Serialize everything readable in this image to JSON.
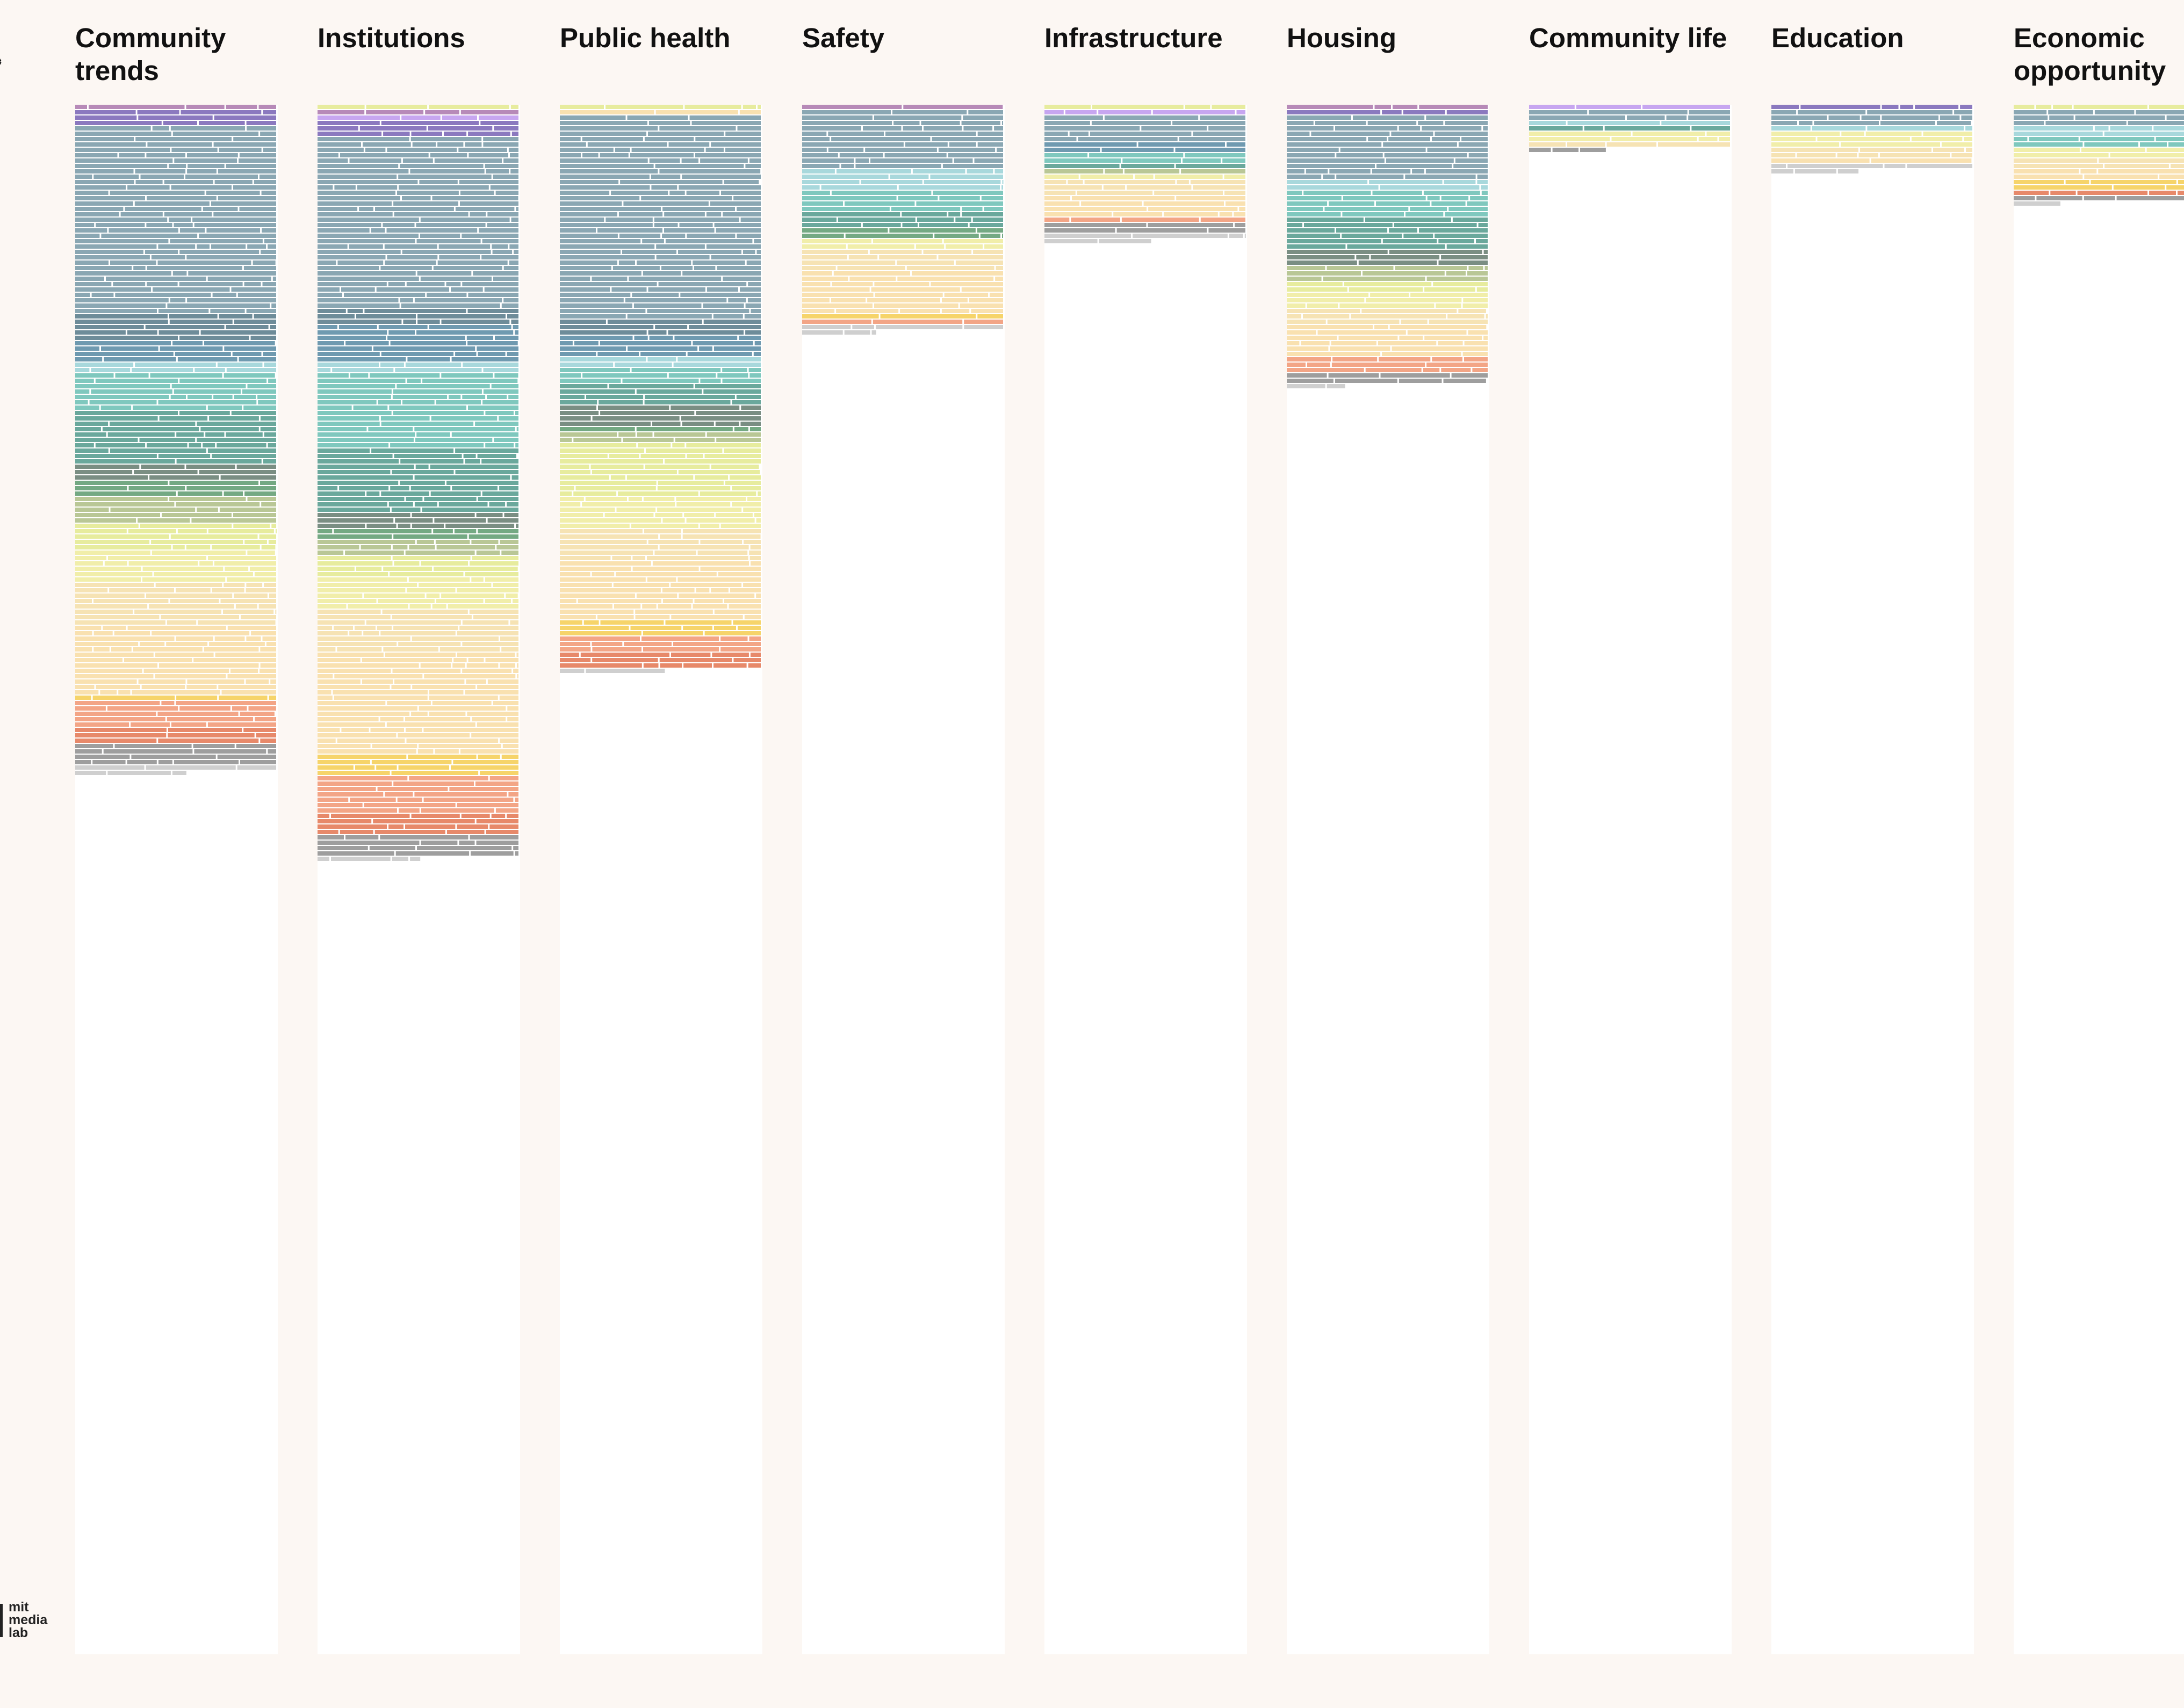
{
  "page": {
    "close_icon": "close-x-icon",
    "logo": {
      "text": "mit\nmedia\nlab",
      "icon": "mit-media-lab-logo"
    }
  },
  "palette": {
    "purple": "#8b79bf",
    "lavender": "#c7a6f0",
    "mauve": "#b78ab8",
    "slate": "#8aa7b3",
    "dark_slate": "#6e8c99",
    "steel_blue": "#6f9ab0",
    "light_cyan": "#a8d8dc",
    "aqua": "#7fc8be",
    "teal": "#6aa89c",
    "green": "#74a983",
    "olive_gray": "#7a8e83",
    "sage": "#b9c796",
    "pale_lime": "#e7ec9e",
    "pale_yellow": "#f1eeaa",
    "cream": "#f6e3b4",
    "pale_orange": "#f9e1b0",
    "yellow": "#f6d46a",
    "salmon": "#f3a586",
    "coral": "#e7896a",
    "gray": "#9e9e9e",
    "light_gray": "#cfcfcf"
  },
  "columns": [
    {
      "title": "Community trends",
      "segments": [
        [
          "mauve",
          1
        ],
        [
          "purple",
          3
        ],
        [
          "slate",
          35
        ],
        [
          "dark_slate",
          5
        ],
        [
          "steel_blue",
          4
        ],
        [
          "light_cyan",
          2
        ],
        [
          "aqua",
          7
        ],
        [
          "teal",
          10
        ],
        [
          "olive_gray",
          3
        ],
        [
          "green",
          3
        ],
        [
          "sage",
          5
        ],
        [
          "pale_lime",
          5
        ],
        [
          "pale_yellow",
          6
        ],
        [
          "cream",
          8
        ],
        [
          "pale_orange",
          13
        ],
        [
          "yellow",
          1
        ],
        [
          "salmon",
          5
        ],
        [
          "coral",
          3
        ],
        [
          "gray",
          4
        ],
        [
          "light_gray",
          2
        ]
      ]
    },
    {
      "title": "Institutions",
      "segments": [
        [
          "pale_lime",
          1
        ],
        [
          "mauve",
          1
        ],
        [
          "lavender",
          1
        ],
        [
          "purple",
          3
        ],
        [
          "slate",
          32
        ],
        [
          "dark_slate",
          3
        ],
        [
          "steel_blue",
          7
        ],
        [
          "light_cyan",
          2
        ],
        [
          "aqua",
          14
        ],
        [
          "teal",
          12
        ],
        [
          "olive_gray",
          3
        ],
        [
          "green",
          2
        ],
        [
          "sage",
          3
        ],
        [
          "pale_lime",
          4
        ],
        [
          "pale_yellow",
          6
        ],
        [
          "cream",
          8
        ],
        [
          "pale_orange",
          19
        ],
        [
          "yellow",
          4
        ],
        [
          "salmon",
          7
        ],
        [
          "coral",
          4
        ],
        [
          "gray",
          4
        ],
        [
          "light_gray",
          1
        ]
      ]
    },
    {
      "title": "Public health",
      "segments": [
        [
          "pale_lime",
          1
        ],
        [
          "pale_orange",
          1
        ],
        [
          "slate",
          38
        ],
        [
          "dark_slate",
          3
        ],
        [
          "steel_blue",
          4
        ],
        [
          "light_cyan",
          2
        ],
        [
          "aqua",
          3
        ],
        [
          "teal",
          4
        ],
        [
          "olive_gray",
          4
        ],
        [
          "green",
          1
        ],
        [
          "sage",
          2
        ],
        [
          "pale_lime",
          10
        ],
        [
          "pale_yellow",
          6
        ],
        [
          "cream",
          6
        ],
        [
          "pale_orange",
          11
        ],
        [
          "yellow",
          3
        ],
        [
          "salmon",
          3
        ],
        [
          "coral",
          3
        ],
        [
          "light_gray",
          1
        ]
      ]
    },
    {
      "title": "Safety",
      "segments": [
        [
          "mauve",
          1
        ],
        [
          "slate",
          11
        ],
        [
          "light_cyan",
          4
        ],
        [
          "aqua",
          4
        ],
        [
          "teal",
          3
        ],
        [
          "green",
          2
        ],
        [
          "pale_yellow",
          2
        ],
        [
          "cream",
          4
        ],
        [
          "pale_orange",
          8
        ],
        [
          "yellow",
          1
        ],
        [
          "salmon",
          1
        ],
        [
          "light_gray",
          2
        ]
      ]
    },
    {
      "title": "Infrastructure",
      "segments": [
        [
          "pale_lime",
          1
        ],
        [
          "lavender",
          1
        ],
        [
          "slate",
          5
        ],
        [
          "steel_blue",
          2
        ],
        [
          "aqua",
          2
        ],
        [
          "teal",
          1
        ],
        [
          "sage",
          1
        ],
        [
          "pale_yellow",
          1
        ],
        [
          "cream",
          3
        ],
        [
          "pale_orange",
          4
        ],
        [
          "salmon",
          1
        ],
        [
          "gray",
          2
        ],
        [
          "light_gray",
          2
        ]
      ]
    },
    {
      "title": "Housing",
      "segments": [
        [
          "mauve",
          1
        ],
        [
          "purple",
          1
        ],
        [
          "slate",
          12
        ],
        [
          "light_cyan",
          2
        ],
        [
          "aqua",
          5
        ],
        [
          "teal",
          6
        ],
        [
          "olive_gray",
          3
        ],
        [
          "sage",
          3
        ],
        [
          "pale_lime",
          2
        ],
        [
          "pale_yellow",
          3
        ],
        [
          "cream",
          3
        ],
        [
          "pale_orange",
          6
        ],
        [
          "salmon",
          3
        ],
        [
          "gray",
          2
        ],
        [
          "light_gray",
          1
        ]
      ]
    },
    {
      "title": "Community life",
      "segments": [
        [
          "lavender",
          1
        ],
        [
          "slate",
          2
        ],
        [
          "light_cyan",
          1
        ],
        [
          "teal",
          1
        ],
        [
          "pale_yellow",
          2
        ],
        [
          "cream",
          1
        ],
        [
          "gray",
          1
        ]
      ]
    },
    {
      "title": "Education",
      "segments": [
        [
          "purple",
          1
        ],
        [
          "slate",
          3
        ],
        [
          "light_cyan",
          1
        ],
        [
          "pale_yellow",
          3
        ],
        [
          "cream",
          2
        ],
        [
          "pale_orange",
          1
        ],
        [
          "light_gray",
          2
        ]
      ]
    },
    {
      "title": "Economic opportunity",
      "segments": [
        [
          "pale_lime",
          1
        ],
        [
          "slate",
          3
        ],
        [
          "light_cyan",
          2
        ],
        [
          "aqua",
          2
        ],
        [
          "pale_yellow",
          2
        ],
        [
          "cream",
          2
        ],
        [
          "pale_orange",
          2
        ],
        [
          "yellow",
          2
        ],
        [
          "coral",
          1
        ],
        [
          "gray",
          1
        ],
        [
          "light_gray",
          1
        ]
      ]
    }
  ]
}
